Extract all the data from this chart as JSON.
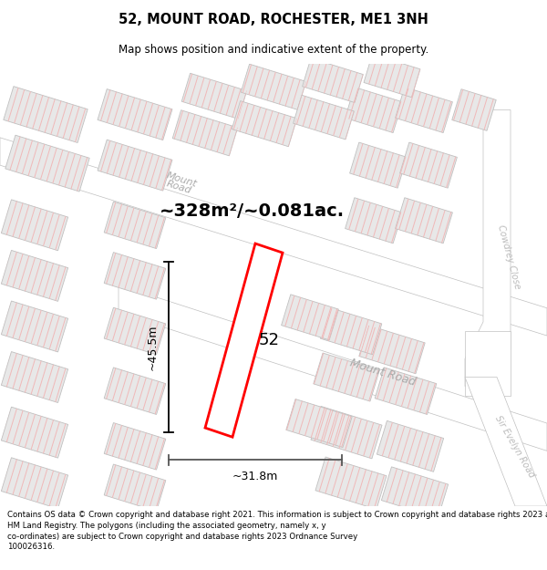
{
  "title": "52, MOUNT ROAD, ROCHESTER, ME1 3NH",
  "subtitle": "Map shows position and indicative extent of the property.",
  "footer": "Contains OS data © Crown copyright and database right 2021. This information is subject to Crown copyright and database rights 2023 and is reproduced with the permission of\nHM Land Registry. The polygons (including the associated geometry, namely x, y\nco-ordinates) are subject to Crown copyright and database rights 2023 Ordnance Survey\n100026316.",
  "area_label": "~328m²/~0.081ac.",
  "number_label": "52",
  "width_label": "~31.8m",
  "height_label": "~45.5m",
  "road_label_upper": "Mount\nRoad",
  "road_label_lower": "Mount Road",
  "cowdrey_label": "Cowdrey Close",
  "evelyn_label": "Sir Evelyn Road",
  "property_color": "#ff0000",
  "building_fill": "#e8e8e8",
  "building_edge": "#c0c0c0",
  "hatch_color": "#f0b8b8",
  "road_fill": "#ffffff",
  "road_edge": "#c8c8c8",
  "bg_color": "#f0f0f0"
}
